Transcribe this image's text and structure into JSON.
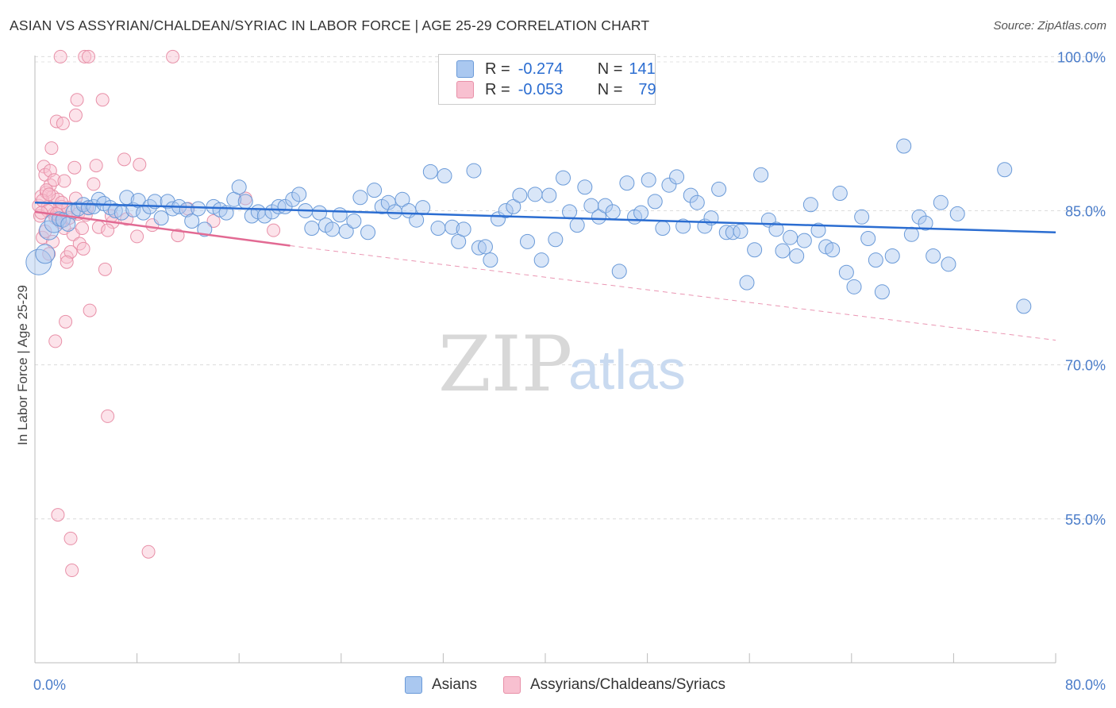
{
  "title": "ASIAN VS ASSYRIAN/CHALDEAN/SYRIAC IN LABOR FORCE | AGE 25-29 CORRELATION CHART",
  "source": "Source: ZipAtlas.com",
  "watermark": {
    "zip": "ZIP",
    "atlas": "atlas"
  },
  "legend": {
    "r_label": "R =",
    "n_label": "N =",
    "rows": [
      {
        "r": "-0.274",
        "n": "141",
        "color": "#aac8f0",
        "border": "#6a9ad8"
      },
      {
        "r": "-0.053",
        "n": "79",
        "color": "#f8c0d0",
        "border": "#e890a8"
      }
    ]
  },
  "bottom_legend": [
    "Asians",
    "Assyrians/Chaldeans/Syriacs"
  ],
  "chart_data": {
    "type": "scatter",
    "title": "ASIAN VS ASSYRIAN/CHALDEAN/SYRIAC IN LABOR FORCE | AGE 25-29 CORRELATION CHART",
    "xlabel": "",
    "ylabel": "In Labor Force | Age 25-29",
    "xlim": [
      0,
      80
    ],
    "ylim": [
      41,
      101.5
    ],
    "x_tick_labels": [
      "0.0%",
      "80.0%"
    ],
    "y_ticks": [
      100,
      85,
      70,
      55
    ],
    "y_tick_labels": [
      "100.0%",
      "85.0%",
      "70.0%",
      "55.0%"
    ],
    "grid": "horizontal dashed",
    "colors": {
      "asians": "#6a9ad8",
      "asians_fill": "rgba(170,200,240,0.45)",
      "asians_line": "#2b6dd1",
      "assyrians": "#e890a8",
      "assyrians_fill": "rgba(248,192,208,0.45)",
      "assyrians_line": "#e26a93"
    },
    "series": [
      {
        "name": "Asians",
        "trend": {
          "x": [
            0,
            80
          ],
          "y": [
            85.8,
            82.9
          ]
        },
        "points": [
          [
            0.3,
            80
          ],
          [
            0.8,
            80.8
          ],
          [
            1.1,
            83.1
          ],
          [
            1.5,
            83.8
          ],
          [
            1.9,
            84.2
          ],
          [
            2.2,
            84.1
          ],
          [
            2.6,
            83.7
          ],
          [
            3.0,
            84.9
          ],
          [
            3.4,
            85.2
          ],
          [
            3.8,
            85.6
          ],
          [
            4.2,
            85.3
          ],
          [
            4.6,
            85.4
          ],
          [
            5.0,
            86.1
          ],
          [
            5.4,
            85.7
          ],
          [
            5.9,
            85.3
          ],
          [
            6.3,
            85.0
          ],
          [
            6.8,
            84.8
          ],
          [
            7.2,
            86.3
          ],
          [
            7.7,
            85.1
          ],
          [
            8.1,
            86.0
          ],
          [
            8.5,
            84.8
          ],
          [
            9.0,
            85.4
          ],
          [
            9.4,
            85.9
          ],
          [
            9.9,
            84.3
          ],
          [
            10.4,
            85.9
          ],
          [
            10.8,
            85.2
          ],
          [
            11.3,
            85.4
          ],
          [
            11.9,
            85.1
          ],
          [
            12.3,
            84.0
          ],
          [
            12.8,
            85.2
          ],
          [
            13.3,
            83.2
          ],
          [
            14.0,
            85.4
          ],
          [
            14.5,
            85.1
          ],
          [
            15.0,
            84.8
          ],
          [
            15.6,
            86.1
          ],
          [
            16.0,
            87.3
          ],
          [
            16.5,
            85.9
          ],
          [
            17.0,
            84.5
          ],
          [
            17.5,
            84.9
          ],
          [
            18.0,
            84.5
          ],
          [
            18.6,
            84.9
          ],
          [
            19.1,
            85.4
          ],
          [
            19.6,
            85.4
          ],
          [
            20.2,
            86.1
          ],
          [
            20.7,
            86.6
          ],
          [
            21.2,
            85.0
          ],
          [
            21.7,
            83.3
          ],
          [
            22.3,
            84.8
          ],
          [
            22.8,
            83.6
          ],
          [
            23.3,
            83.2
          ],
          [
            23.9,
            84.6
          ],
          [
            24.4,
            83.0
          ],
          [
            25.0,
            84.0
          ],
          [
            25.5,
            86.3
          ],
          [
            26.1,
            82.9
          ],
          [
            26.6,
            87.0
          ],
          [
            27.2,
            85.4
          ],
          [
            27.7,
            85.8
          ],
          [
            28.2,
            84.9
          ],
          [
            28.8,
            86.1
          ],
          [
            29.3,
            85.0
          ],
          [
            29.9,
            84.1
          ],
          [
            30.4,
            85.3
          ],
          [
            31.0,
            88.8
          ],
          [
            31.6,
            83.3
          ],
          [
            32.1,
            88.4
          ],
          [
            32.7,
            83.4
          ],
          [
            33.2,
            82.0
          ],
          [
            33.6,
            83.2
          ],
          [
            34.4,
            88.9
          ],
          [
            34.8,
            81.4
          ],
          [
            35.3,
            81.5
          ],
          [
            35.7,
            80.2
          ],
          [
            36.3,
            84.2
          ],
          [
            36.9,
            85.0
          ],
          [
            37.5,
            85.4
          ],
          [
            38.0,
            86.5
          ],
          [
            38.6,
            82.0
          ],
          [
            39.2,
            86.6
          ],
          [
            39.7,
            80.2
          ],
          [
            40.3,
            86.5
          ],
          [
            40.8,
            82.2
          ],
          [
            41.4,
            88.2
          ],
          [
            41.9,
            84.9
          ],
          [
            42.5,
            83.6
          ],
          [
            43.1,
            87.3
          ],
          [
            43.6,
            85.5
          ],
          [
            44.2,
            84.4
          ],
          [
            44.7,
            85.5
          ],
          [
            45.3,
            84.9
          ],
          [
            45.8,
            79.1
          ],
          [
            46.4,
            87.7
          ],
          [
            47.0,
            84.4
          ],
          [
            47.5,
            84.8
          ],
          [
            48.1,
            88.0
          ],
          [
            48.6,
            85.9
          ],
          [
            49.2,
            83.3
          ],
          [
            49.7,
            87.5
          ],
          [
            50.3,
            88.3
          ],
          [
            50.8,
            83.5
          ],
          [
            51.4,
            86.5
          ],
          [
            51.9,
            85.8
          ],
          [
            52.5,
            83.5
          ],
          [
            53.0,
            84.3
          ],
          [
            53.6,
            87.1
          ],
          [
            54.2,
            82.9
          ],
          [
            54.7,
            82.9
          ],
          [
            55.3,
            83.0
          ],
          [
            55.8,
            78.0
          ],
          [
            56.4,
            81.2
          ],
          [
            56.9,
            88.5
          ],
          [
            57.5,
            84.1
          ],
          [
            58.1,
            83.2
          ],
          [
            58.6,
            81.1
          ],
          [
            59.2,
            82.4
          ],
          [
            59.7,
            80.6
          ],
          [
            60.3,
            82.1
          ],
          [
            60.8,
            85.6
          ],
          [
            61.4,
            83.1
          ],
          [
            62.0,
            81.5
          ],
          [
            62.5,
            81.2
          ],
          [
            63.1,
            86.7
          ],
          [
            63.6,
            79.0
          ],
          [
            64.2,
            77.6
          ],
          [
            64.8,
            84.4
          ],
          [
            65.3,
            82.3
          ],
          [
            65.9,
            80.2
          ],
          [
            66.4,
            77.1
          ],
          [
            67.2,
            80.6
          ],
          [
            68.1,
            91.3
          ],
          [
            68.7,
            82.7
          ],
          [
            69.3,
            84.4
          ],
          [
            69.8,
            83.8
          ],
          [
            70.4,
            80.6
          ],
          [
            71.0,
            85.8
          ],
          [
            71.6,
            79.8
          ],
          [
            72.3,
            84.7
          ],
          [
            76.0,
            89.0
          ],
          [
            77.5,
            75.7
          ]
        ]
      },
      {
        "name": "Assyrians/Chaldeans/Syriacs",
        "trend": {
          "x": [
            0,
            20
          ],
          "y": [
            84.9,
            81.6
          ]
        },
        "trend_extended": {
          "x": [
            20,
            80
          ],
          "y": [
            81.6,
            72.4
          ]
        },
        "points": [
          [
            0.3,
            85.5
          ],
          [
            0.4,
            84.5
          ],
          [
            0.5,
            86.4
          ],
          [
            0.6,
            82.4
          ],
          [
            0.7,
            89.3
          ],
          [
            0.8,
            88.5
          ],
          [
            0.9,
            86.8
          ],
          [
            1.0,
            85.4
          ],
          [
            1.1,
            80.8
          ],
          [
            1.2,
            88.9
          ],
          [
            1.3,
            91.1
          ],
          [
            1.4,
            86.4
          ],
          [
            1.5,
            84.7
          ],
          [
            1.6,
            72.3
          ],
          [
            1.7,
            93.7
          ],
          [
            1.8,
            86.1
          ],
          [
            1.9,
            84.9
          ],
          [
            2.0,
            100
          ],
          [
            2.1,
            85.4
          ],
          [
            2.2,
            93.5
          ],
          [
            2.3,
            83.3
          ],
          [
            2.4,
            74.2
          ],
          [
            2.5,
            80.5
          ],
          [
            2.6,
            85.3
          ],
          [
            2.7,
            84.3
          ],
          [
            2.8,
            53.1
          ],
          [
            2.9,
            50.0
          ],
          [
            3.0,
            82.7
          ],
          [
            3.1,
            89.2
          ],
          [
            3.2,
            94.3
          ],
          [
            3.3,
            95.8
          ],
          [
            3.4,
            84.7
          ],
          [
            3.5,
            81.8
          ],
          [
            3.7,
            83.3
          ],
          [
            3.9,
            100
          ],
          [
            4.1,
            85.3
          ],
          [
            4.3,
            75.3
          ],
          [
            4.6,
            87.6
          ],
          [
            4.8,
            89.4
          ],
          [
            5.0,
            83.4
          ],
          [
            5.3,
            95.8
          ],
          [
            5.5,
            79.3
          ],
          [
            5.7,
            65.0
          ],
          [
            6.1,
            83.9
          ],
          [
            7.0,
            90.0
          ],
          [
            8.2,
            89.5
          ],
          [
            9.2,
            83.6
          ],
          [
            10.8,
            100
          ],
          [
            11.2,
            82.6
          ],
          [
            16.5,
            86.2
          ],
          [
            18.7,
            83.1
          ],
          [
            1.8,
            55.4
          ],
          [
            8.9,
            51.8
          ],
          [
            4.2,
            100
          ],
          [
            1.2,
            87.5
          ],
          [
            0.9,
            87.0
          ],
          [
            1.5,
            88.0
          ],
          [
            2.3,
            87.9
          ],
          [
            0.6,
            86.0
          ],
          [
            1.0,
            85.0
          ],
          [
            1.6,
            84.3
          ],
          [
            2.0,
            83.9
          ],
          [
            2.8,
            81.0
          ],
          [
            3.8,
            81.3
          ],
          [
            5.7,
            83.1
          ],
          [
            7.2,
            84.2
          ],
          [
            0.8,
            83.0
          ],
          [
            1.4,
            82.0
          ],
          [
            2.5,
            80.0
          ],
          [
            0.5,
            84.8
          ],
          [
            1.1,
            86.6
          ],
          [
            2.1,
            85.8
          ],
          [
            3.2,
            86.2
          ],
          [
            4.0,
            84.6
          ],
          [
            6.0,
            84.5
          ],
          [
            8.0,
            82.5
          ],
          [
            12.0,
            85.2
          ],
          [
            14.0,
            84.0
          ],
          [
            1.7,
            84.7
          ]
        ]
      }
    ]
  }
}
